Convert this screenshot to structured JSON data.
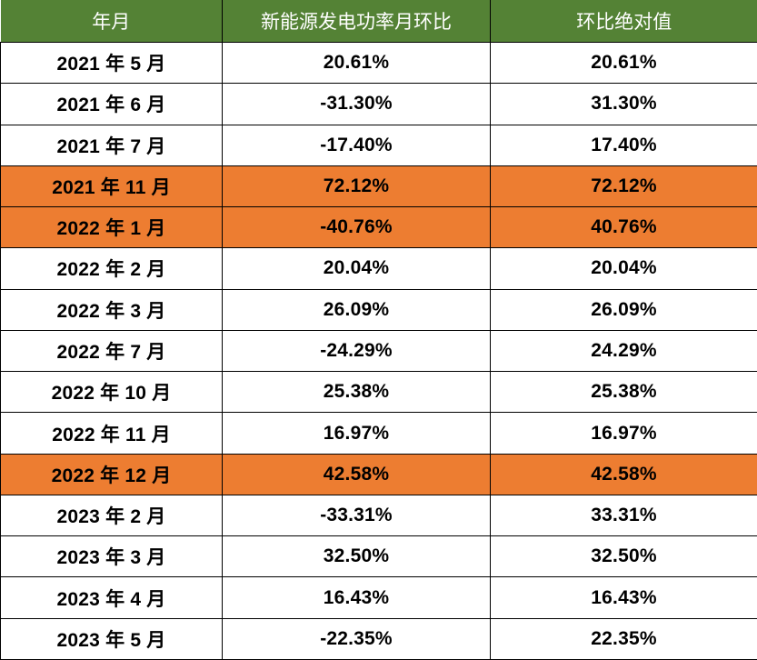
{
  "chart_data": {
    "type": "table",
    "columns": [
      "年月",
      "新能源发电功率月环比",
      "环比绝对值"
    ],
    "rows": [
      {
        "cells": [
          "2021 年 5 月",
          "20.61%",
          "20.61%"
        ],
        "highlight": false
      },
      {
        "cells": [
          "2021 年 6 月",
          "-31.30%",
          "31.30%"
        ],
        "highlight": false
      },
      {
        "cells": [
          "2021 年 7 月",
          "-17.40%",
          "17.40%"
        ],
        "highlight": false
      },
      {
        "cells": [
          "2021 年 11 月",
          "72.12%",
          "72.12%"
        ],
        "highlight": true
      },
      {
        "cells": [
          "2022 年 1 月",
          "-40.76%",
          "40.76%"
        ],
        "highlight": true
      },
      {
        "cells": [
          "2022 年 2 月",
          "20.04%",
          "20.04%"
        ],
        "highlight": false
      },
      {
        "cells": [
          "2022 年 3 月",
          "26.09%",
          "26.09%"
        ],
        "highlight": false
      },
      {
        "cells": [
          "2022 年 7 月",
          "-24.29%",
          "24.29%"
        ],
        "highlight": false
      },
      {
        "cells": [
          "2022 年 10 月",
          "25.38%",
          "25.38%"
        ],
        "highlight": false
      },
      {
        "cells": [
          "2022 年 11 月",
          "16.97%",
          "16.97%"
        ],
        "highlight": false
      },
      {
        "cells": [
          "2022 年 12 月",
          "42.58%",
          "42.58%"
        ],
        "highlight": true
      },
      {
        "cells": [
          "2023 年 2 月",
          "-33.31%",
          "33.31%"
        ],
        "highlight": false
      },
      {
        "cells": [
          "2023 年 3 月",
          "32.50%",
          "32.50%"
        ],
        "highlight": false
      },
      {
        "cells": [
          "2023 年 4 月",
          "16.43%",
          "16.43%"
        ],
        "highlight": false
      },
      {
        "cells": [
          "2023 年 5 月",
          "-22.35%",
          "22.35%"
        ],
        "highlight": false
      }
    ],
    "legend_position": "none",
    "grid": true
  },
  "colors": {
    "header_bg": "#548235",
    "header_text": "#ffffff",
    "highlight_bg": "#ED7D31",
    "border": "#000000",
    "body_text": "#000000",
    "row_bg": "#ffffff"
  }
}
